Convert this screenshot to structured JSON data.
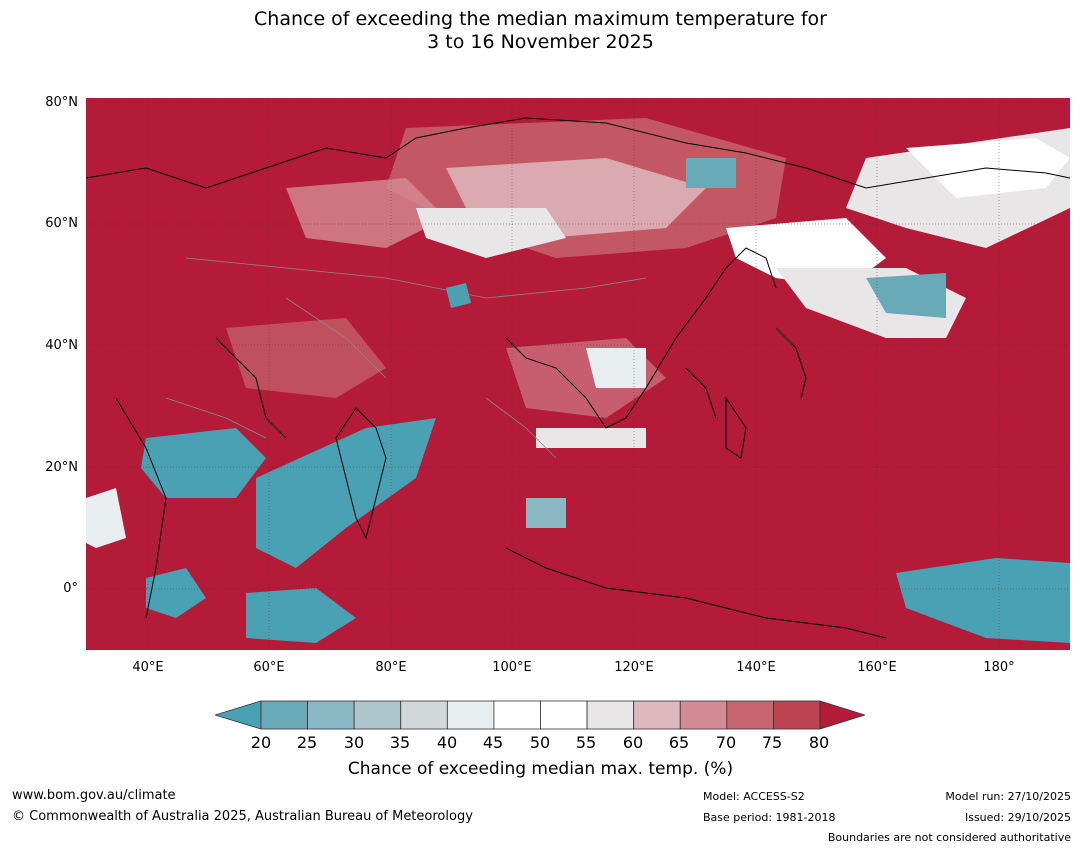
{
  "title": {
    "line1": "Chance of exceeding the median maximum temperature for",
    "line2": "3 to 16 November 2025"
  },
  "map": {
    "region": "Asia",
    "latitude_labels": [
      "80°N",
      "60°N",
      "40°N",
      "20°N",
      "0°"
    ],
    "longitude_labels": [
      "40°E",
      "60°E",
      "80°E",
      "100°E",
      "120°E",
      "140°E",
      "160°E",
      "180°"
    ],
    "colors": {
      "dominant_high": "#b31b39",
      "low": "#4aa1b4",
      "neutral": "#ffffff"
    },
    "gridlines": true
  },
  "colorbar": {
    "ticks": [
      "20",
      "25",
      "30",
      "35",
      "40",
      "45",
      "50",
      "55",
      "60",
      "65",
      "70",
      "75",
      "80"
    ],
    "colors": [
      "#4aa1b4",
      "#6aa9b8",
      "#89b7c4",
      "#adc6cc",
      "#d1d8da",
      "#e8eeef",
      "#ffffff",
      "#ffffff",
      "#e9e6e7",
      "#dfb8bd",
      "#d48c94",
      "#c8666f",
      "#bc4450",
      "#b31b39"
    ],
    "label": "Chance of exceeding median max. temp. (%)"
  },
  "footer": {
    "website": "www.bom.gov.au/climate",
    "copyright": "© Commonwealth of Australia 2025, Australian Bureau of Meteorology",
    "model": "Model: ACCESS-S2",
    "base_period": "Base period: 1981-2018",
    "model_run": "Model run: 27/10/2025",
    "issued": "Issued: 29/10/2025",
    "disclaimer": "Boundaries are not considered authoritative"
  }
}
